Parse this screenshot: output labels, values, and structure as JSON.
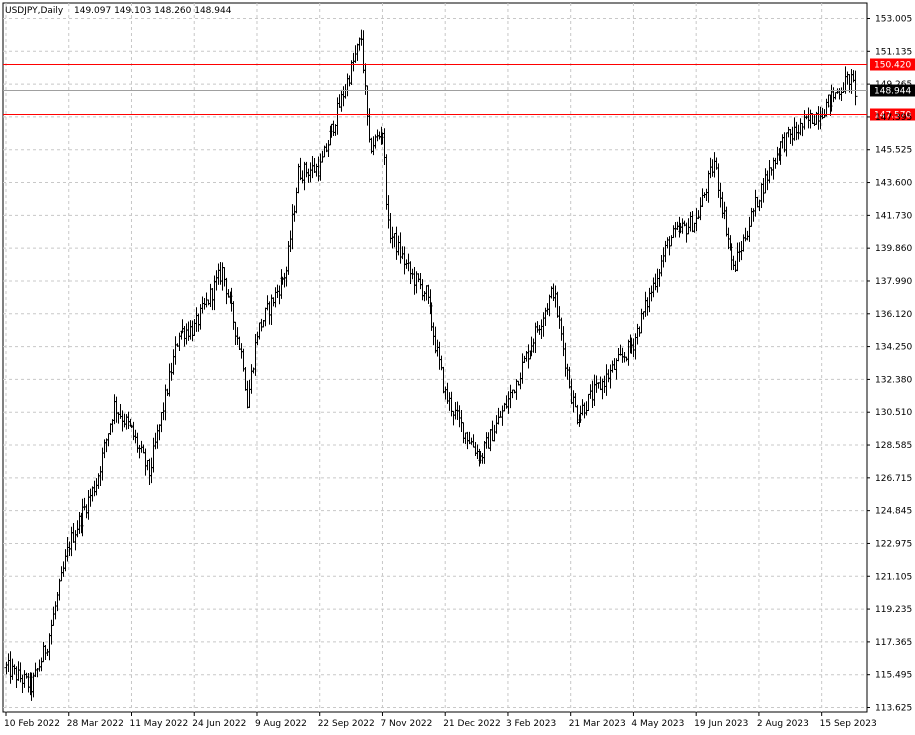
{
  "header": {
    "symbol": "USDJPY,Daily",
    "ohlc": "149.097 149.103 148.260 148.944"
  },
  "colors": {
    "background": "#ffffff",
    "bars": "#000000",
    "grid": "#c8c8c8",
    "level_line": "#ff0000",
    "price_tag_bg": "#000000",
    "price_tag_text": "#ffffff",
    "level_tag_bg": "#ff0000",
    "level_tag_text": "#ffffff"
  },
  "chart_data": {
    "type": "ohlc-bar",
    "title": "USDJPY,Daily",
    "xlabel": "",
    "ylabel": "",
    "ylim": [
      113.625,
      153.005
    ],
    "y_ticks": [
      "153.005",
      "151.135",
      "149.265",
      "147.395",
      "145.525",
      "143.600",
      "141.730",
      "139.860",
      "137.990",
      "136.120",
      "134.250",
      "132.380",
      "130.510",
      "128.585",
      "126.715",
      "124.845",
      "122.975",
      "121.105",
      "119.235",
      "117.365",
      "115.495",
      "113.625"
    ],
    "x_ticks": [
      "10 Feb 2022",
      "28 Mar 2022",
      "11 May 2022",
      "24 Jun 2022",
      "9 Aug 2022",
      "22 Sep 2022",
      "7 Nov 2022",
      "21 Dec 2022",
      "3 Feb 2023",
      "21 Mar 2023",
      "4 May 2023",
      "19 Jun 2023",
      "2 Aug 2023",
      "15 Sep 2023"
    ],
    "grid": true,
    "current_price": "148.944",
    "levels": [
      {
        "label": "150.420",
        "value": 150.42
      },
      {
        "label": "147.570",
        "value": 147.57
      }
    ],
    "path_date_range": [
      "10 Feb 2022",
      "Oct 2023"
    ],
    "path": [
      [
        "10 Feb 2022",
        115.9
      ],
      [
        "1 Mar 2022",
        114.8
      ],
      [
        "11 Mar 2022",
        117.3
      ],
      [
        "28 Mar 2022",
        123.0
      ],
      [
        "15 Apr 2022",
        126.5
      ],
      [
        "28 Apr 2022",
        130.9
      ],
      [
        "11 May 2022",
        129.4
      ],
      [
        "24 May 2022",
        127.0
      ],
      [
        "14 Jun 2022",
        135.1
      ],
      [
        "24 Jun 2022",
        135.3
      ],
      [
        "14 Jul 2022",
        138.6
      ],
      [
        "29 Jul 2022",
        133.4
      ],
      [
        "2 Aug 2022",
        131.0
      ],
      [
        "9 Aug 2022",
        135.1
      ],
      [
        "30 Aug 2022",
        138.6
      ],
      [
        "7 Sep 2022",
        144.2
      ],
      [
        "22 Sep 2022",
        144.5
      ],
      [
        "21 Oct 2022",
        151.9
      ],
      [
        "27 Oct 2022",
        145.6
      ],
      [
        "7 Nov 2022",
        146.6
      ],
      [
        "10 Nov 2022",
        141.0
      ],
      [
        "25 Nov 2022",
        138.4
      ],
      [
        "7 Dec 2022",
        137.3
      ],
      [
        "21 Dec 2022",
        131.5
      ],
      [
        "3 Jan 2023",
        129.5
      ],
      [
        "16 Jan 2023",
        127.9
      ],
      [
        "3 Feb 2023",
        131.2
      ],
      [
        "8 Mar 2023",
        137.5
      ],
      [
        "21 Mar 2023",
        131.5
      ],
      [
        "24 Mar 2023",
        130.3
      ],
      [
        "4 May 2023",
        134.5
      ],
      [
        "30 May 2023",
        140.4
      ],
      [
        "19 Jun 2023",
        141.5
      ],
      [
        "30 Jun 2023",
        144.8
      ],
      [
        "14 Jul 2023",
        138.6
      ],
      [
        "2 Aug 2023",
        143.0
      ],
      [
        "17 Aug 2023",
        145.8
      ],
      [
        "15 Sep 2023",
        147.8
      ],
      [
        "5 Oct 2023",
        149.6
      ],
      [
        "10 Oct 2023",
        148.9
      ]
    ]
  }
}
